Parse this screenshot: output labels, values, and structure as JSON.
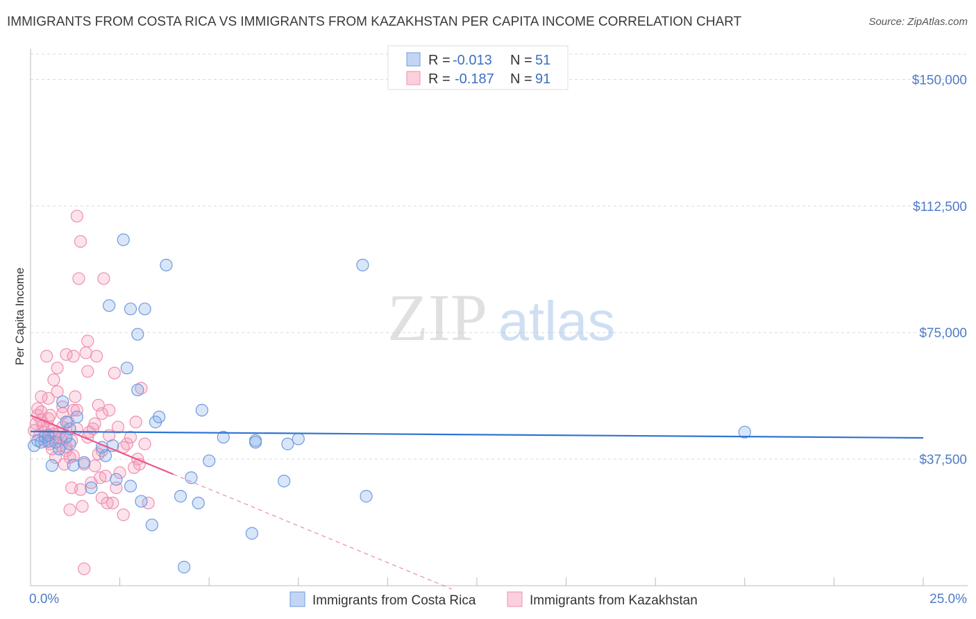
{
  "chart_data": {
    "type": "scatter",
    "title": "IMMIGRANTS FROM COSTA RICA VS IMMIGRANTS FROM KAZAKHSTAN PER CAPITA INCOME CORRELATION CHART",
    "source": "Source: ZipAtlas.com",
    "xlabel": "",
    "ylabel": "Per Capita Income",
    "xlim": [
      0,
      25
    ],
    "ylim": [
      0,
      157500
    ],
    "x_tick_labels": [
      "0.0%",
      "25.0%"
    ],
    "y_ticks": [
      37500,
      75000,
      112500,
      150000
    ],
    "y_tick_labels": [
      "$37,500",
      "$75,000",
      "$112,500",
      "$150,000"
    ],
    "watermark": {
      "zip": "ZIP",
      "atlas": "atlas"
    },
    "colors": {
      "blue": "#6d9ae0",
      "blue_line": "#2f74d0",
      "pink": "#ee8fb1",
      "pink_line": "#e8578b"
    },
    "legend": [
      {
        "r_label": "R =",
        "r_value": "-0.013",
        "n_label": "N =",
        "n_value": "51"
      },
      {
        "r_label": "R =",
        "r_value": "-0.187",
        "n_label": "N =",
        "n_value": "91"
      }
    ],
    "series": [
      {
        "name": "Immigrants from Costa Rica",
        "color": "blue",
        "trend": {
          "x": [
            0.0,
            25.0
          ],
          "y": [
            45700,
            43800
          ]
        },
        "points": [
          [
            0.1,
            41500
          ],
          [
            0.2,
            43000
          ],
          [
            0.3,
            42500
          ],
          [
            0.4,
            44000
          ],
          [
            0.5,
            44500
          ],
          [
            0.6,
            35600
          ],
          [
            0.7,
            42500
          ],
          [
            0.8,
            40500
          ],
          [
            0.9,
            54500
          ],
          [
            1.0,
            48500
          ],
          [
            1.1,
            42000
          ],
          [
            1.1,
            46500
          ],
          [
            1.2,
            35700
          ],
          [
            1.3,
            50000
          ],
          [
            1.5,
            36500
          ],
          [
            1.7,
            29000
          ],
          [
            2.0,
            41000
          ],
          [
            2.1,
            38500
          ],
          [
            2.2,
            83000
          ],
          [
            2.3,
            41500
          ],
          [
            2.4,
            31500
          ],
          [
            2.6,
            102500
          ],
          [
            2.7,
            64500
          ],
          [
            2.8,
            82000
          ],
          [
            2.8,
            29500
          ],
          [
            3.0,
            58000
          ],
          [
            3.0,
            74500
          ],
          [
            3.1,
            25000
          ],
          [
            3.2,
            82000
          ],
          [
            3.4,
            18000
          ],
          [
            3.5,
            48500
          ],
          [
            3.6,
            50000
          ],
          [
            3.8,
            95000
          ],
          [
            4.2,
            26500
          ],
          [
            4.3,
            5500
          ],
          [
            4.5,
            32000
          ],
          [
            4.7,
            24500
          ],
          [
            4.8,
            52000
          ],
          [
            5.0,
            37000
          ],
          [
            5.4,
            44000
          ],
          [
            6.2,
            15500
          ],
          [
            6.3,
            43000
          ],
          [
            6.3,
            42500
          ],
          [
            7.1,
            31000
          ],
          [
            7.2,
            42000
          ],
          [
            7.5,
            43500
          ],
          [
            9.3,
            95000
          ],
          [
            9.4,
            26500
          ],
          [
            20.0,
            45500
          ],
          [
            1.0,
            44000
          ],
          [
            0.5,
            42800
          ]
        ]
      },
      {
        "name": "Immigrants from Kazakhstan",
        "color": "pink",
        "trend": {
          "x": [
            0.0,
            4.0
          ],
          "y": [
            50500,
            33000
          ]
        },
        "trend_ext": {
          "x": [
            4.0,
            11.8
          ],
          "y": [
            33000,
            -1000
          ]
        },
        "points": [
          [
            0.1,
            46000
          ],
          [
            0.15,
            48000
          ],
          [
            0.2,
            50500
          ],
          [
            0.2,
            52500
          ],
          [
            0.25,
            44500
          ],
          [
            0.3,
            56000
          ],
          [
            0.3,
            51500
          ],
          [
            0.35,
            47500
          ],
          [
            0.4,
            43000
          ],
          [
            0.4,
            45500
          ],
          [
            0.45,
            68000
          ],
          [
            0.5,
            49500
          ],
          [
            0.5,
            55500
          ],
          [
            0.55,
            42000
          ],
          [
            0.6,
            40500
          ],
          [
            0.6,
            46000
          ],
          [
            0.65,
            61000
          ],
          [
            0.7,
            38000
          ],
          [
            0.7,
            44000
          ],
          [
            0.75,
            57500
          ],
          [
            0.75,
            64500
          ],
          [
            0.8,
            45000
          ],
          [
            0.85,
            41500
          ],
          [
            0.9,
            51000
          ],
          [
            0.9,
            47000
          ],
          [
            0.95,
            36000
          ],
          [
            1.0,
            40000
          ],
          [
            1.0,
            68500
          ],
          [
            1.0,
            44000
          ],
          [
            1.05,
            48500
          ],
          [
            1.1,
            38000
          ],
          [
            1.1,
            22500
          ],
          [
            1.15,
            29000
          ],
          [
            1.15,
            43000
          ],
          [
            1.2,
            68000
          ],
          [
            1.2,
            52000
          ],
          [
            1.25,
            56000
          ],
          [
            1.3,
            109500
          ],
          [
            1.35,
            91000
          ],
          [
            1.4,
            102000
          ],
          [
            1.4,
            28500
          ],
          [
            1.45,
            23500
          ],
          [
            1.5,
            5000
          ],
          [
            1.5,
            36000
          ],
          [
            1.55,
            69000
          ],
          [
            1.6,
            72500
          ],
          [
            1.6,
            63500
          ],
          [
            1.65,
            45500
          ],
          [
            1.7,
            30500
          ],
          [
            1.75,
            46500
          ],
          [
            1.8,
            48000
          ],
          [
            1.8,
            35500
          ],
          [
            1.85,
            68000
          ],
          [
            1.9,
            53500
          ],
          [
            1.9,
            39000
          ],
          [
            1.95,
            32000
          ],
          [
            2.0,
            51000
          ],
          [
            2.0,
            26000
          ],
          [
            2.05,
            91000
          ],
          [
            2.1,
            32500
          ],
          [
            2.15,
            24500
          ],
          [
            2.2,
            52000
          ],
          [
            2.3,
            24500
          ],
          [
            2.4,
            29000
          ],
          [
            2.5,
            33500
          ],
          [
            2.6,
            21000
          ],
          [
            2.7,
            42000
          ],
          [
            2.8,
            44000
          ],
          [
            2.9,
            35000
          ],
          [
            3.0,
            37500
          ],
          [
            3.1,
            58500
          ],
          [
            3.2,
            42000
          ],
          [
            3.3,
            24500
          ],
          [
            2.35,
            63000
          ],
          [
            2.45,
            47000
          ],
          [
            1.3,
            46500
          ],
          [
            0.55,
            50500
          ],
          [
            0.65,
            45000
          ],
          [
            0.85,
            43500
          ],
          [
            1.0,
            41000
          ],
          [
            2.95,
            48500
          ],
          [
            2.2,
            44500
          ],
          [
            0.9,
            53000
          ],
          [
            0.3,
            49000
          ],
          [
            1.2,
            38500
          ],
          [
            1.6,
            44000
          ],
          [
            2.0,
            40000
          ],
          [
            0.5,
            47000
          ],
          [
            1.3,
            52000
          ],
          [
            2.6,
            41000
          ],
          [
            3.05,
            36000
          ]
        ]
      }
    ]
  },
  "bottom_legend": [
    "Immigrants from Costa Rica",
    "Immigrants from Kazakhstan"
  ]
}
